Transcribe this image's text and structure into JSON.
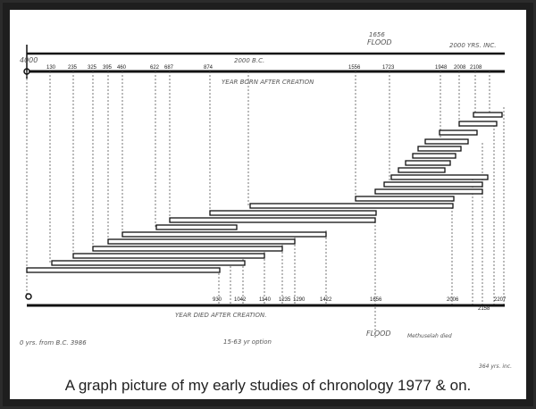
{
  "caption": "A graph picture of my early studies of chronology 1977 & on.",
  "diagram": {
    "top_bar_left_label": "4000",
    "top_bar_mid_label": "2000 B.C.",
    "top_bar_right_label": "2000 YRS. INC.",
    "flood_top_label": "FLOOD",
    "flood_top_year": "1656",
    "flood_bottom_label": "FLOOD",
    "born_axis_title": "YEAR BORN AFTER CREATION",
    "died_axis_title": "YEAR DIED AFTER CREATION.",
    "born_ticks": [
      "130",
      "235",
      "325",
      "395",
      "460",
      "622",
      "687",
      "874",
      "1556",
      "1723",
      "1948",
      "2008",
      "2108"
    ],
    "died_ticks": [
      "930",
      "1042",
      "1140",
      "1235",
      "1290",
      "1422",
      "1656",
      "2006",
      "2158",
      "2207"
    ],
    "bottom_note_left": "0 yrs. from B.C. 3986",
    "bottom_note_mid": "15-63 yr option",
    "bottom_note_flood": "Methuselah died",
    "corner_note": "364 yrs. inc."
  }
}
